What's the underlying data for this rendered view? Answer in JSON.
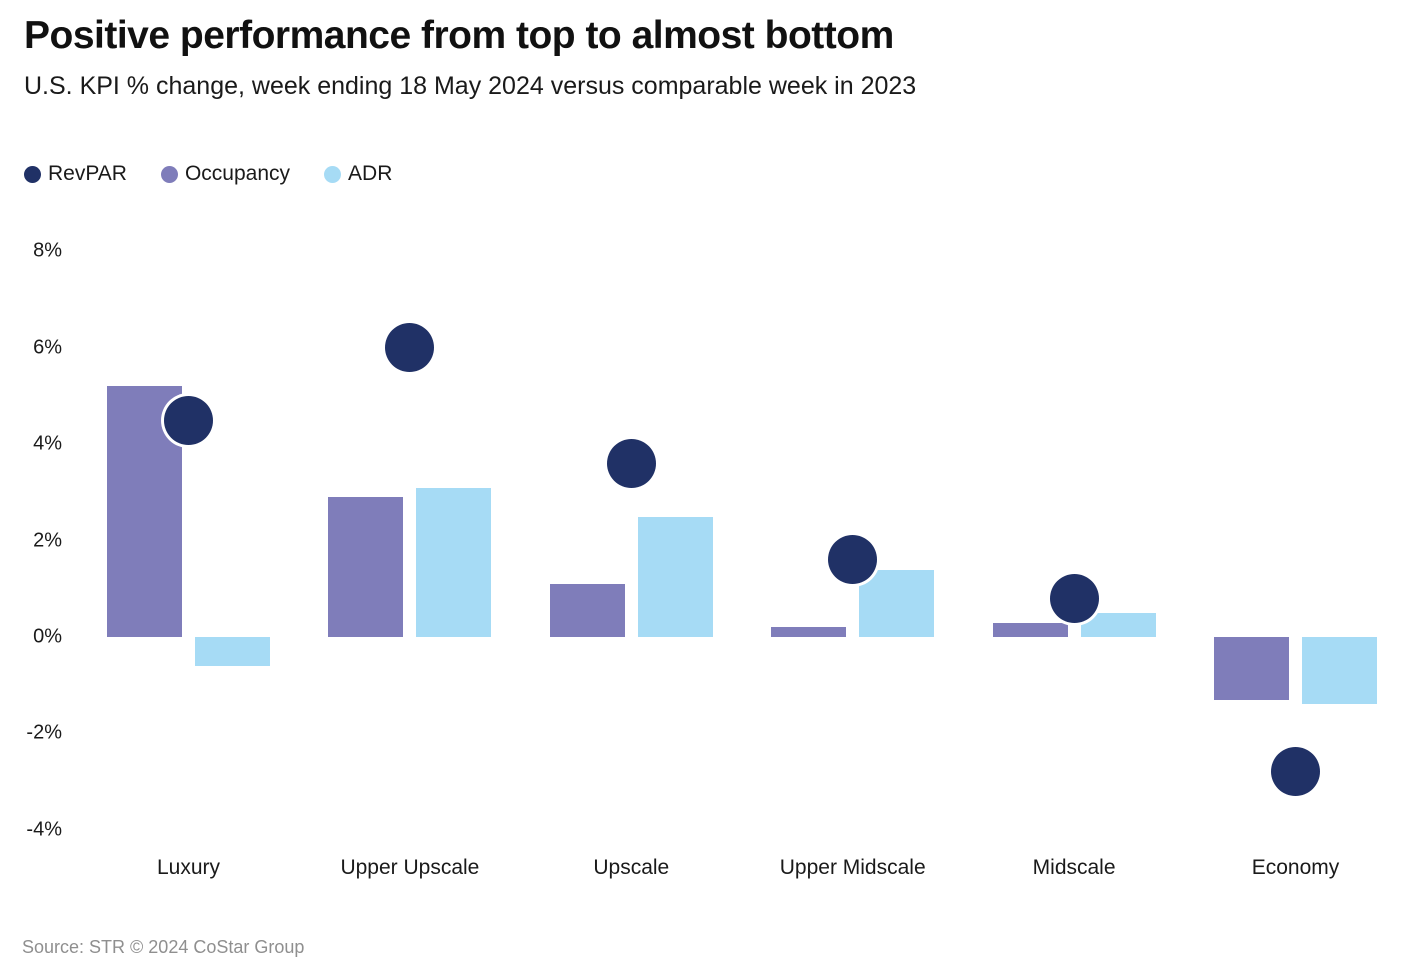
{
  "chart_data": {
    "type": "bar",
    "subtype": "grouped bars with dot markers (combo)",
    "title": "Positive performance from top to almost bottom",
    "subtitle": "U.S. KPI % change, week ending 18 May 2024 versus comparable week in 2023",
    "categories": [
      "Luxury",
      "Upper Upscale",
      "Upscale",
      "Upper Midscale",
      "Midscale",
      "Economy"
    ],
    "series": [
      {
        "name": "RevPAR",
        "mark": "dot",
        "color": "#203166",
        "values": [
          4.5,
          6.0,
          3.6,
          1.6,
          0.8,
          -2.8
        ]
      },
      {
        "name": "Occupancy",
        "mark": "bar",
        "color": "#7F7DBA",
        "values": [
          5.2,
          2.9,
          1.1,
          0.2,
          0.3,
          -1.3
        ]
      },
      {
        "name": "ADR",
        "mark": "bar",
        "color": "#A6DBF5",
        "values": [
          -0.6,
          3.1,
          2.5,
          1.4,
          0.5,
          -1.4
        ]
      }
    ],
    "xlabel": "",
    "ylabel": "",
    "yticks": [
      8,
      6,
      4,
      2,
      0,
      -2,
      -4
    ],
    "ytick_suffix": "%",
    "ylim": [
      -5,
      9
    ],
    "grid": false,
    "legend_position": "top-left",
    "source": "Source: STR © 2024 CoStar Group"
  }
}
